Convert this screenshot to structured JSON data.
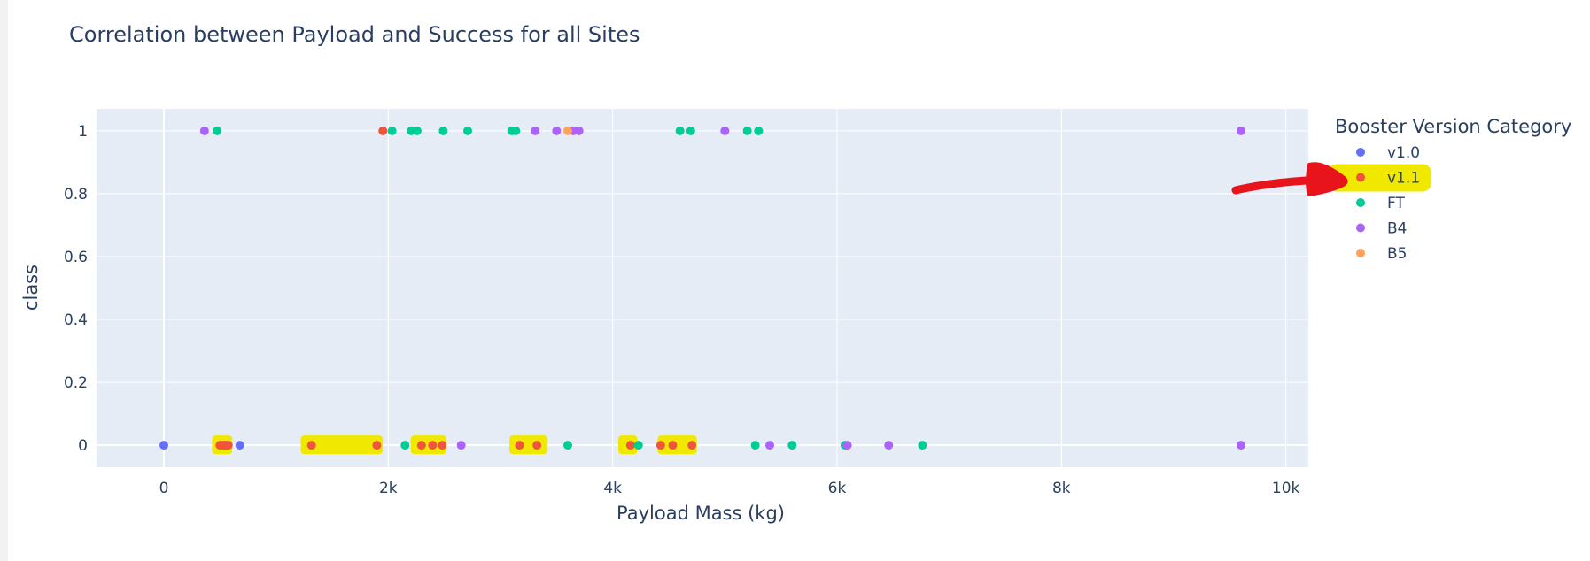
{
  "chart_data": {
    "type": "scatter",
    "title": "Correlation between Payload and Success for all Sites",
    "xlabel": "Payload Mass (kg)",
    "ylabel": "class",
    "xlim": [
      -600,
      10200
    ],
    "ylim": [
      -0.07,
      1.07
    ],
    "x_ticks": [
      {
        "v": 0,
        "label": "0"
      },
      {
        "v": 2000,
        "label": "2k"
      },
      {
        "v": 4000,
        "label": "4k"
      },
      {
        "v": 6000,
        "label": "6k"
      },
      {
        "v": 8000,
        "label": "8k"
      },
      {
        "v": 10000,
        "label": "10k"
      }
    ],
    "y_ticks": [
      {
        "v": 0,
        "label": "0"
      },
      {
        "v": 0.2,
        "label": "0.2"
      },
      {
        "v": 0.4,
        "label": "0.4"
      },
      {
        "v": 0.6,
        "label": "0.6"
      },
      {
        "v": 0.8,
        "label": "0.8"
      },
      {
        "v": 1,
        "label": "1"
      }
    ],
    "grid": true,
    "legend": {
      "title": "Booster Version Category",
      "placement": "right"
    },
    "series": [
      {
        "name": "v1.0",
        "color": "#636efa",
        "x": [
          0,
          677
        ],
        "y": [
          0,
          0
        ]
      },
      {
        "name": "v1.1",
        "color": "#ef553b",
        "x": [
          1952,
          500,
          525,
          540,
          560,
          575,
          1316,
          1898,
          2296,
          2395,
          2482,
          3170,
          3325,
          4159,
          4428,
          4535,
          4707
        ],
        "y": [
          1,
          0,
          0,
          0,
          0,
          0,
          0,
          0,
          0,
          0,
          0,
          0,
          0,
          0,
          0,
          0,
          0
        ]
      },
      {
        "name": "FT",
        "color": "#00cc96",
        "x": [
          475,
          2034,
          2205,
          2257,
          2490,
          2708,
          3100,
          3136,
          4600,
          4696,
          5200,
          5300,
          2150,
          3600,
          4230,
          5271,
          5600,
          6070,
          6761
        ],
        "y": [
          1,
          1,
          1,
          1,
          1,
          1,
          1,
          1,
          1,
          1,
          1,
          1,
          0,
          0,
          0,
          0,
          0,
          0,
          0
        ]
      },
      {
        "name": "B4",
        "color": "#ab63fa",
        "x": [
          362,
          3310,
          3500,
          3650,
          3700,
          5000,
          9600,
          2650,
          5400,
          6092,
          6460,
          9600
        ],
        "y": [
          1,
          1,
          1,
          1,
          1,
          1,
          1,
          0,
          0,
          0,
          0,
          0
        ]
      },
      {
        "name": "B5",
        "color": "#ffa15a",
        "x": [
          3600
        ],
        "y": [
          1
        ]
      }
    ],
    "annotations": {
      "highlight_color": "#f1e800",
      "arrow_color": "#e8141b",
      "highlighted_series": "v1.1",
      "highlighted_ranges": [
        [
          430,
          610
        ],
        [
          1220,
          1950
        ],
        [
          2200,
          2520
        ],
        [
          3080,
          3420
        ],
        [
          4050,
          4220
        ],
        [
          4400,
          4750
        ]
      ]
    }
  }
}
